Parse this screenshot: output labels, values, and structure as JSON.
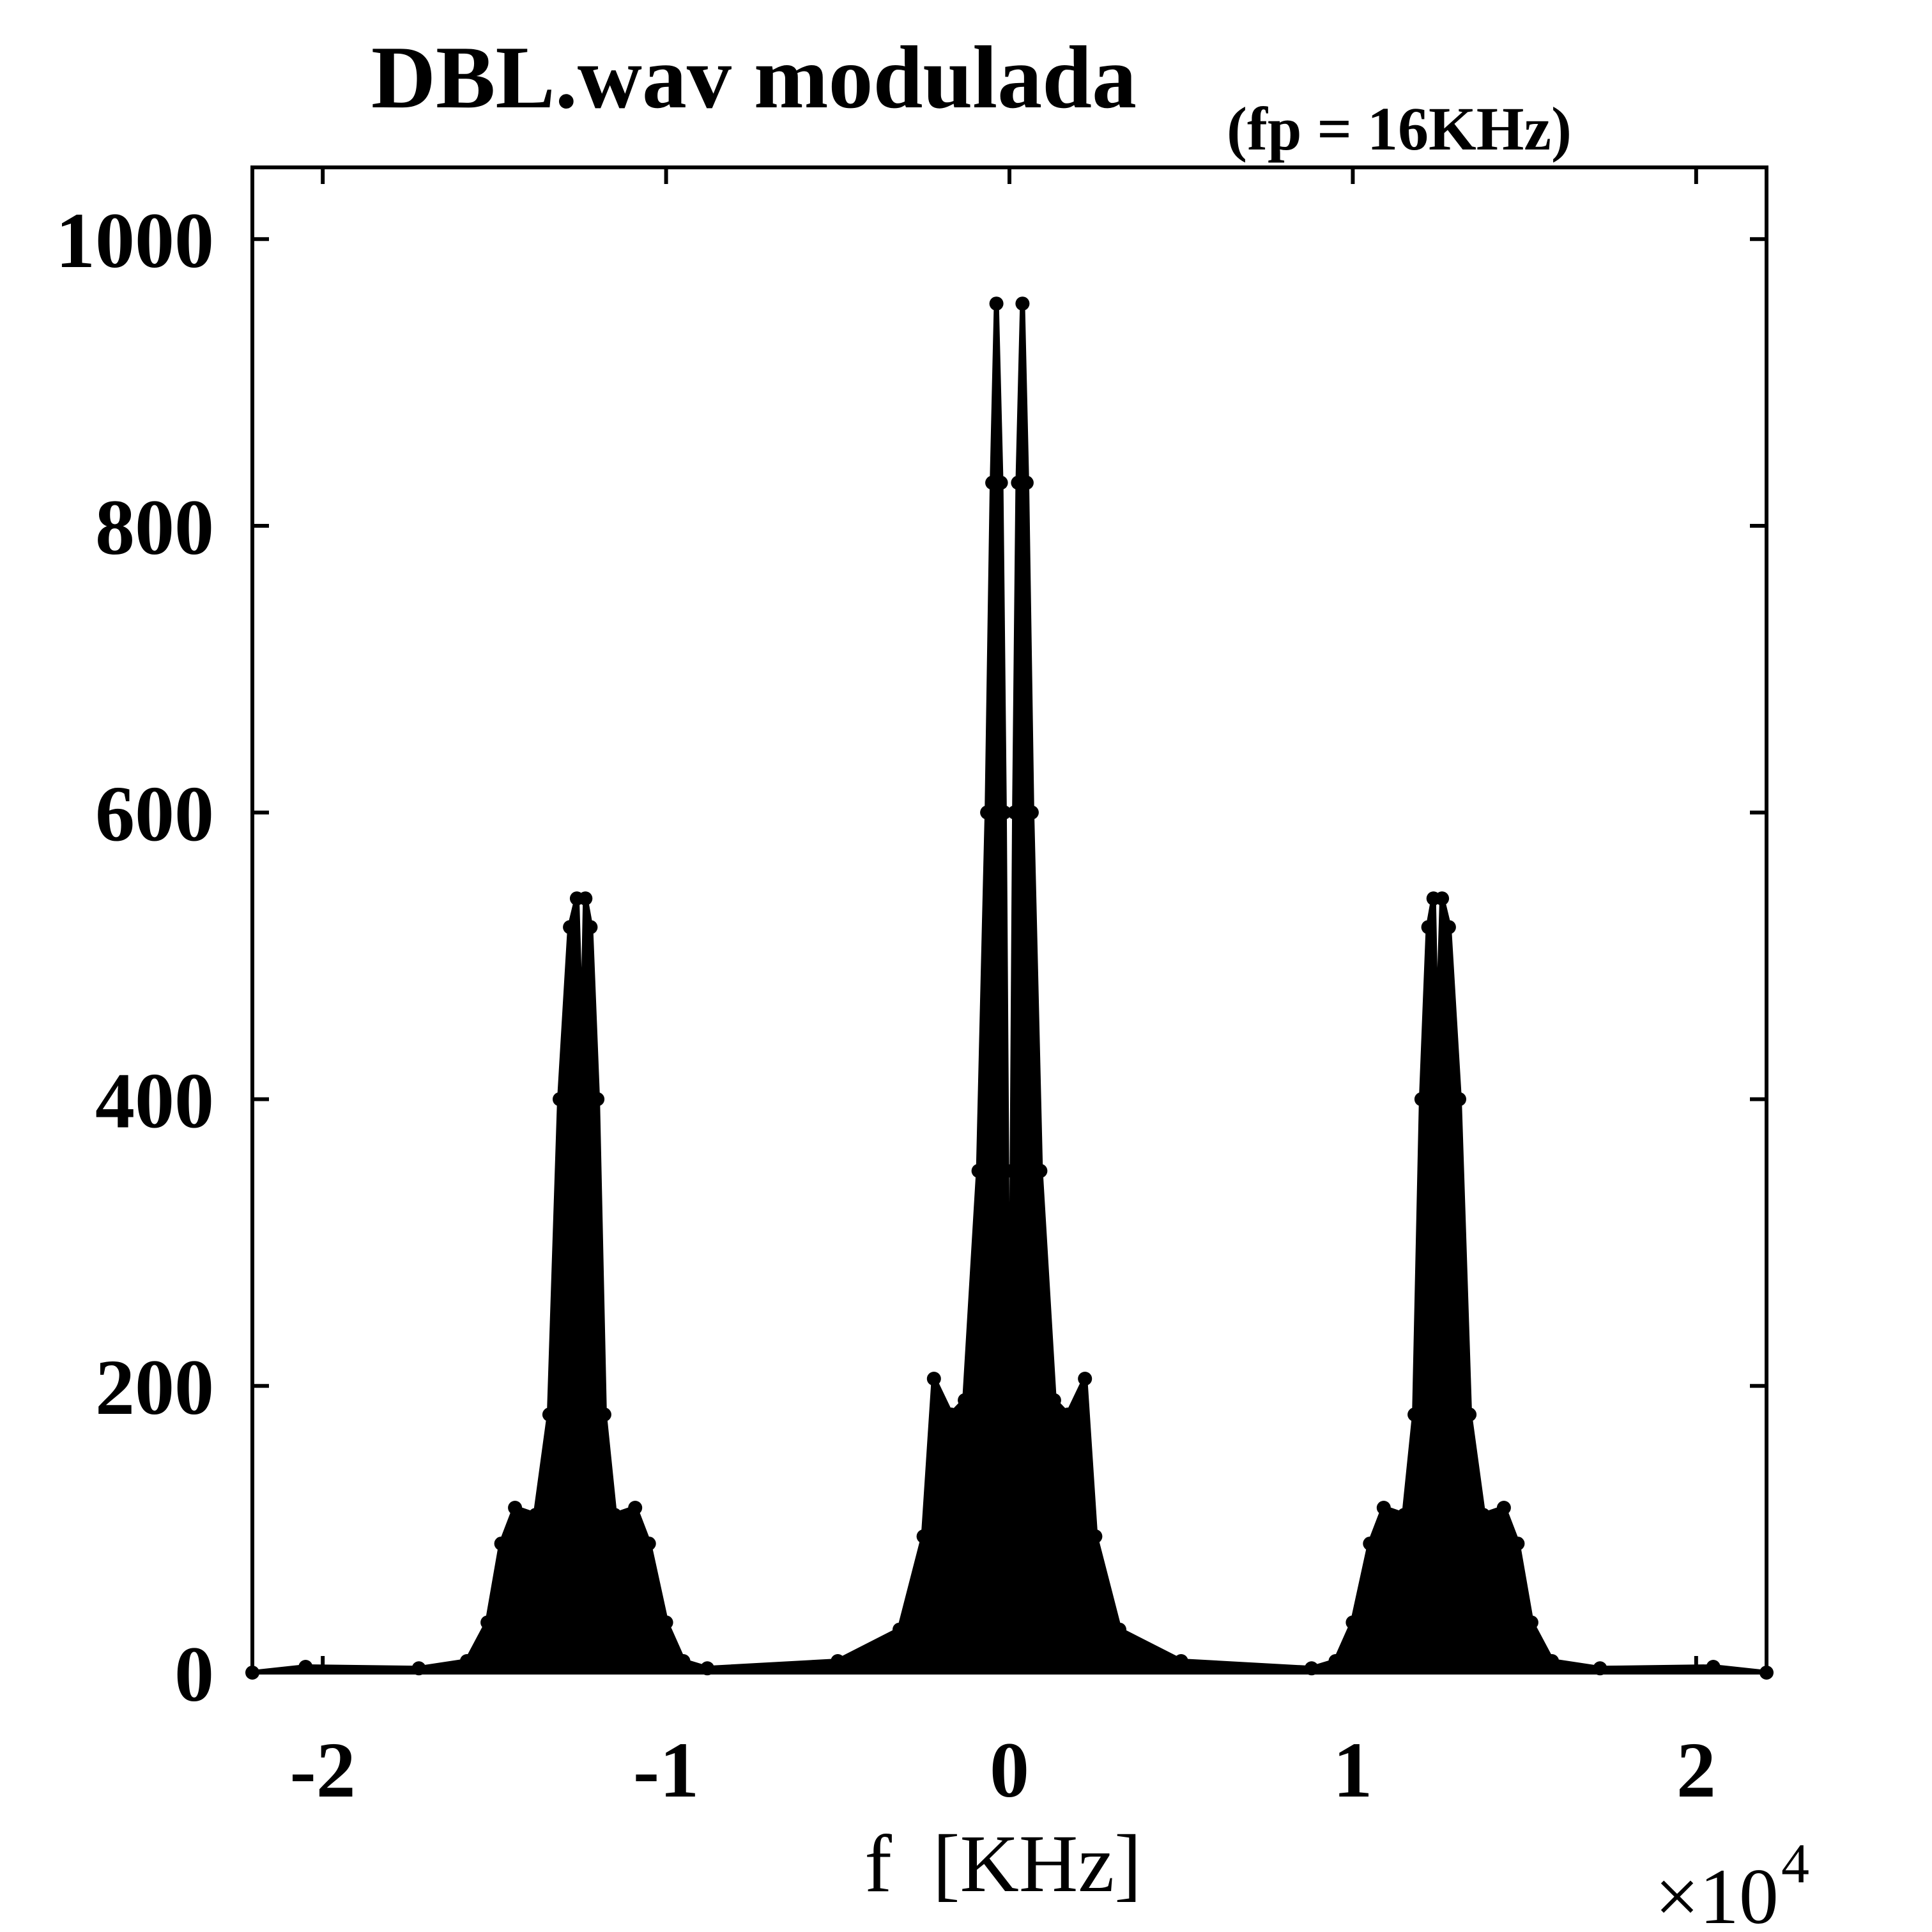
{
  "chart_data": {
    "type": "line",
    "title": "DBL.wav modulada",
    "subtitle": "(fp = 16KHz)",
    "xlabel": "f  [KHz]",
    "ylabel": "",
    "x_exponent": {
      "base": "×10",
      "power": "4"
    },
    "xlim": [
      -22050,
      22050
    ],
    "ylim": [
      0,
      1050
    ],
    "x_ticks": [
      -20000,
      -10000,
      0,
      10000,
      20000
    ],
    "x_tick_labels": [
      "-2",
      "-1",
      "0",
      "1",
      "2"
    ],
    "y_ticks": [
      0,
      200,
      400,
      600,
      800,
      1000
    ],
    "y_tick_labels": [
      "0",
      "200",
      "400",
      "600",
      "800",
      "1000"
    ],
    "grid": false,
    "legend": "none",
    "marker": "filled-circle",
    "line_color": "#000000",
    "series": [
      {
        "x": [
          -22050,
          -20500,
          -17200,
          -15800,
          -15200,
          -14800,
          -14400,
          -13800,
          -13400,
          -13100,
          -12800,
          -12600,
          -12450,
          -12350,
          -12200,
          -12000,
          -11800,
          -11500,
          -10900,
          -10500,
          -10000,
          -9500,
          -8800,
          -5000,
          -3200,
          -2500,
          -2200,
          -1700,
          -1300,
          -900,
          -650,
          -500,
          -380,
          -250,
          -150,
          -80,
          0,
          80,
          150,
          250,
          380,
          500,
          650,
          900,
          1300,
          1700,
          2200,
          2500,
          3200,
          5000,
          8800,
          9500,
          10000,
          10500,
          10900,
          11500,
          11800,
          12000,
          12200,
          12350,
          12450,
          12600,
          12800,
          13100,
          13400,
          13800,
          14400,
          14800,
          15200,
          15800,
          17200,
          20500,
          22050
        ],
        "y": [
          0,
          4,
          3,
          8,
          35,
          90,
          115,
          110,
          180,
          400,
          520,
          540,
          420,
          540,
          520,
          400,
          180,
          110,
          115,
          90,
          35,
          8,
          3,
          8,
          30,
          95,
          205,
          180,
          190,
          350,
          600,
          830,
          955,
          830,
          600,
          350,
          30,
          350,
          600,
          830,
          955,
          830,
          600,
          350,
          190,
          180,
          205,
          95,
          30,
          8,
          3,
          8,
          35,
          90,
          115,
          110,
          180,
          400,
          520,
          540,
          420,
          540,
          520,
          400,
          180,
          110,
          115,
          90,
          35,
          8,
          3,
          4,
          0
        ]
      }
    ]
  }
}
